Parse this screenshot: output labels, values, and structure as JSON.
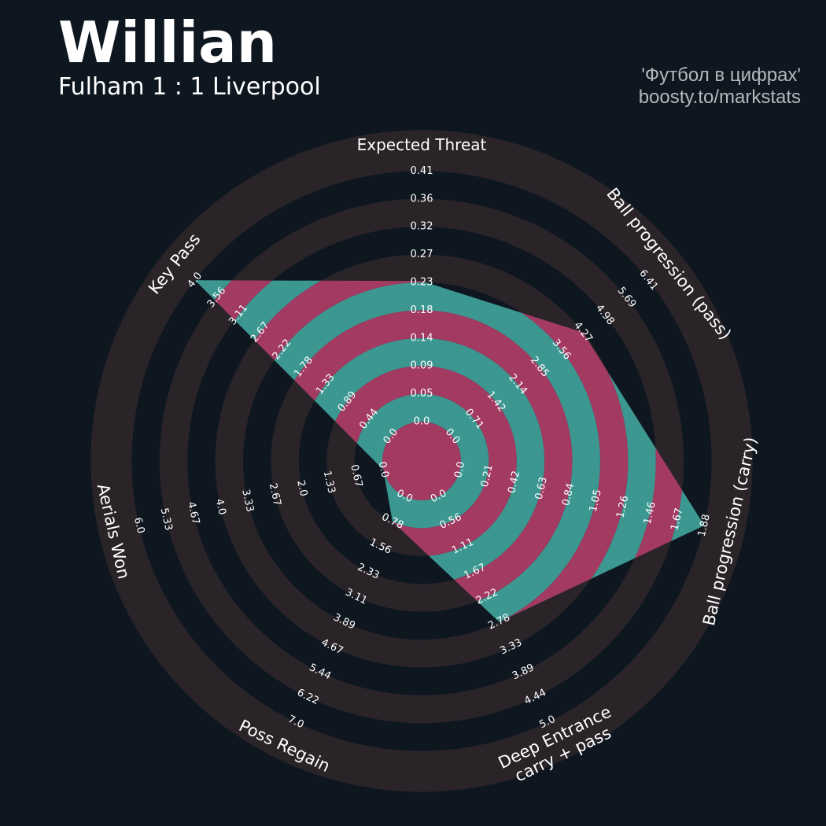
{
  "header": {
    "player": "Willian",
    "match": "Fulham 1 : 1 Liverpool",
    "credit_line_1": "'Футбол в цифрах'",
    "credit_line_2": "boosty.to/markstats"
  },
  "colors": {
    "background": "#0e1720",
    "ring_band": "#2a2429",
    "fill_teal": "#3d9791",
    "fill_magenta": "#a33a62",
    "text": "#ffffff",
    "credit_text": "#b5b8bc"
  },
  "chart_data": {
    "type": "radar",
    "title": "Willian",
    "subtitle": "Fulham 1 : 1 Liverpool",
    "axes": [
      {
        "label": "Expected Threat",
        "label_lines": [
          "Expected Threat"
        ],
        "min": 0.0,
        "max": 0.41,
        "ticks": [
          "0.0",
          "0.05",
          "0.09",
          "0.14",
          "0.18",
          "0.23",
          "0.27",
          "0.32",
          "0.36",
          "0.41"
        ],
        "value": 0.23
      },
      {
        "label": "Ball progression (pass)",
        "label_lines": [
          "Ball progression (pass)"
        ],
        "min": 0.0,
        "max": 6.41,
        "ticks": [
          "0.0",
          "0.71",
          "1.42",
          "2.14",
          "2.85",
          "3.56",
          "4.27",
          "4.98",
          "5.69",
          "6.41"
        ],
        "value": 4.27
      },
      {
        "label": "Ball progression (carry)",
        "label_lines": [
          "Ball progression (carry)"
        ],
        "min": 0.0,
        "max": 1.88,
        "ticks": [
          "0.0",
          "0.21",
          "0.42",
          "0.63",
          "0.84",
          "1.05",
          "1.26",
          "1.46",
          "1.67",
          "1.88"
        ],
        "value": 1.88
      },
      {
        "label": "Deep Entrance carry + pass",
        "label_lines": [
          "Deep Entrance",
          "carry + pass"
        ],
        "min": 0.0,
        "max": 5.0,
        "ticks": [
          "0.0",
          "0.56",
          "1.11",
          "1.67",
          "2.22",
          "2.78",
          "3.33",
          "3.89",
          "4.44",
          "5.0"
        ],
        "value": 2.78
      },
      {
        "label": "Poss Regain",
        "label_lines": [
          "Poss Regain"
        ],
        "min": 0.0,
        "max": 7.0,
        "ticks": [
          "0.0",
          "0.78",
          "1.56",
          "2.33",
          "3.11",
          "3.89",
          "4.67",
          "5.44",
          "6.22",
          "7.0"
        ],
        "value": 0.78
      },
      {
        "label": "Aerials Won",
        "label_lines": [
          "Aerials Won"
        ],
        "min": 0.0,
        "max": 6.0,
        "ticks": [
          "0.0",
          "0.67",
          "1.33",
          "2.0",
          "2.67",
          "3.33",
          "4.0",
          "4.67",
          "5.33",
          "6.0"
        ],
        "value": 0.0
      },
      {
        "label": "Key Pass",
        "label_lines": [
          "Key Pass"
        ],
        "min": 0.0,
        "max": 4.0,
        "ticks": [
          "0.0",
          "0.44",
          "0.89",
          "1.33",
          "1.78",
          "2.22",
          "2.67",
          "3.11",
          "3.56",
          "4.0"
        ],
        "value": 4.0
      }
    ]
  }
}
